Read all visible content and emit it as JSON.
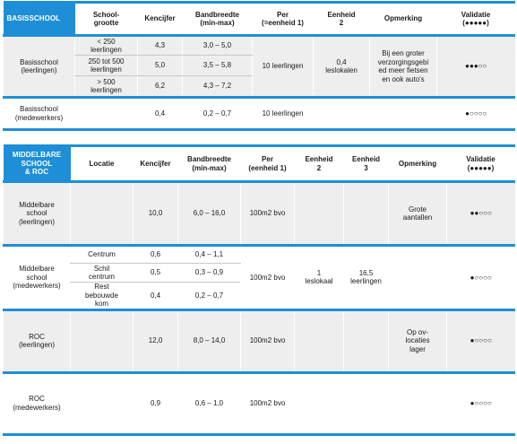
{
  "table1": {
    "headers": {
      "corner": "BASISSCHOOL",
      "schoolgrootte": "School-\ngrootte",
      "kencijfer": "Kencijfer",
      "bandbreedte": "Bandbreedte\n(min-max)",
      "per": "Per\n(=eenheid 1)",
      "eenheid2": "Eenheid\n2",
      "opmerking": "Opmerking",
      "validatie": "Validatie\n(●●●●●)"
    },
    "leerlingen": {
      "label": "Basisschool\n(leerlingen)",
      "sub": [
        {
          "grootte": "< 250\nleerlingen",
          "kencijfer": "4,3",
          "bandbreedte": "3,0 – 5,0"
        },
        {
          "grootte": "250 tot 500\nleerlingen",
          "kencijfer": "5,0",
          "bandbreedte": "3,5 – 5,8"
        },
        {
          "grootte": "> 500\nleerlingen",
          "kencijfer": "6,2",
          "bandbreedte": "4,3 – 7,2"
        }
      ],
      "per": "10 leerlingen",
      "eenheid2": "0,4\nleslokalen",
      "opmerking": "Bij een groter\nverzorgingsgebi\ned meer fietsen\nen ook auto's",
      "validatie": "●●●○○"
    },
    "medewerkers": {
      "label": "Basisschool\n(medewerkers)",
      "kencijfer": "0,4",
      "bandbreedte": "0,2 – 0,7",
      "per": "10 leerlingen",
      "validatie": "●○○○○"
    }
  },
  "table2": {
    "headers": {
      "corner": "MIDDELBARE\nSCHOOL\n& ROC",
      "locatie": "Locatie",
      "kencijfer": "Kencijfer",
      "bandbreedte": "Bandbreedte\n(min-max)",
      "per": "Per\n(eenheid 1)",
      "eenheid2": "Eenheid\n2",
      "eenheid3": "Eenheid\n3",
      "opmerking": "Opmerking",
      "validatie": "Validatie\n(●●●●●)"
    },
    "mb_leerlingen": {
      "label": "Middelbare\nschool\n(leerlingen)",
      "kencijfer": "10,0",
      "bandbreedte": "6,0 – 16,0",
      "per": "100m2 bvo",
      "opmerking": "Grote\naantallen",
      "validatie": "●●○○○"
    },
    "mb_medewerkers": {
      "label": "Middelbare\nschool\n(medewerkers)",
      "sub": [
        {
          "locatie": "Centrum",
          "kencijfer": "0,6",
          "bandbreedte": "0,4 – 1,1"
        },
        {
          "locatie": "Schil\ncentrum",
          "kencijfer": "0,5",
          "bandbreedte": "0,3 – 0,9"
        },
        {
          "locatie": "Rest\nbebouwde\nkom",
          "kencijfer": "0,4",
          "bandbreedte": "0,2 – 0,7"
        }
      ],
      "per": "100m2 bvo",
      "eenheid2": "1\nleslokaal",
      "eenheid3": "16,5\nleerlingen",
      "validatie": "●○○○○"
    },
    "roc_leerlingen": {
      "label": "ROC\n(leerlingen)",
      "kencijfer": "12,0",
      "bandbreedte": "8,0 – 14,0",
      "per": "100m2 bvo",
      "opmerking": "Op ov-\nlocaties\nlager",
      "validatie": "●○○○○"
    },
    "roc_medewerkers": {
      "label": "ROC\n(medewerkers)",
      "kencijfer": "0,9",
      "bandbreedte": "0,6 – 1,0",
      "per": "100m2 bvo",
      "validatie": "●○○○○"
    }
  }
}
